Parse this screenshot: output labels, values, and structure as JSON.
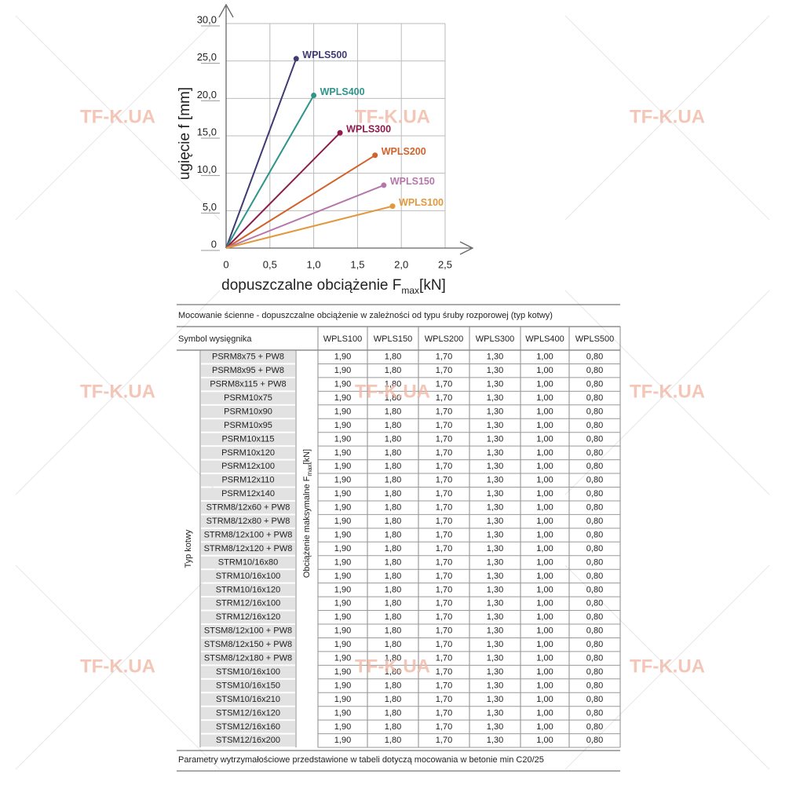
{
  "chart_data": {
    "type": "line",
    "y_label": "ugięcie f [mm]",
    "x_label": {
      "text": "dopuszczalne obciążenie F",
      "sub": "max",
      "unit": "[kN]"
    },
    "xlim": [
      0,
      2.5
    ],
    "xticks": [
      0,
      {
        "value": 0.5,
        "label": "0,5"
      },
      {
        "value": 1,
        "label": "1,0"
      },
      {
        "value": 1.5,
        "label": "1,5"
      },
      {
        "value": 2,
        "label": "2,0"
      },
      {
        "value": 2.5,
        "label": "2,5"
      }
    ],
    "ylim": [
      0,
      30
    ],
    "yticks": [
      0,
      {
        "value": 5,
        "label": "5,0"
      },
      {
        "value": 10,
        "label": "10,0"
      },
      {
        "value": 15,
        "label": "15,0"
      },
      {
        "value": 20,
        "label": "20,0"
      },
      {
        "value": 25,
        "label": "25,0"
      },
      {
        "value": 30,
        "label": "30,0"
      }
    ],
    "grid": true,
    "series": [
      {
        "name": "WPLS500",
        "color": "#3f3b72",
        "x": [
          0,
          0.8
        ],
        "values": [
          0,
          25.3
        ]
      },
      {
        "name": "WPLS400",
        "color": "#2f958a",
        "x": [
          0,
          1.0
        ],
        "values": [
          0,
          20.4
        ]
      },
      {
        "name": "WPLS300",
        "color": "#8c1c4c",
        "x": [
          0,
          1.3
        ],
        "values": [
          0,
          15.4
        ]
      },
      {
        "name": "WPLS200",
        "color": "#d2622c",
        "x": [
          0,
          1.7
        ],
        "values": [
          0,
          12.4
        ]
      },
      {
        "name": "WPLS150",
        "color": "#b577aa",
        "x": [
          0,
          1.8
        ],
        "values": [
          0,
          8.4
        ]
      },
      {
        "name": "WPLS100",
        "color": "#e2983c",
        "x": [
          0,
          1.9
        ],
        "values": [
          0,
          5.6
        ]
      }
    ]
  },
  "watermark": "TF-K.UA",
  "table": {
    "caption": "Mocowanie ścienne - dopuszczalne obciążenie w zależności od typu śruby rozporowej (typ kotwy)",
    "header_label": "Symbol wysięgnika",
    "columns": [
      "WPLS100",
      "WPLS150",
      "WPLS200",
      "WPLS300",
      "WPLS400",
      "WPLS500"
    ],
    "group_label": "Typ kotwy",
    "value_label": {
      "text": "Obciążenie maksymalne F",
      "sub": "max",
      "unit": "[kN]"
    },
    "rows": [
      [
        "PSRM8x75 + PW8",
        "1,90",
        "1,80",
        "1,70",
        "1,30",
        "1,00",
        "0,80"
      ],
      [
        "PSRM8x95 + PW8",
        "1,90",
        "1,80",
        "1,70",
        "1,30",
        "1,00",
        "0,80"
      ],
      [
        "PSRM8x115 + PW8",
        "1,90",
        "1,80",
        "1,70",
        "1,30",
        "1,00",
        "0,80"
      ],
      [
        "PSRM10x75",
        "1,90",
        "1,80",
        "1,70",
        "1,30",
        "1,00",
        "0,80"
      ],
      [
        "PSRM10x90",
        "1,90",
        "1,80",
        "1,70",
        "1,30",
        "1,00",
        "0,80"
      ],
      [
        "PSRM10x95",
        "1,90",
        "1,80",
        "1,70",
        "1,30",
        "1,00",
        "0,80"
      ],
      [
        "PSRM10x115",
        "1,90",
        "1,80",
        "1,70",
        "1,30",
        "1,00",
        "0,80"
      ],
      [
        "PSRM10x120",
        "1,90",
        "1,80",
        "1,70",
        "1,30",
        "1,00",
        "0,80"
      ],
      [
        "PSRM12x100",
        "1,90",
        "1,80",
        "1,70",
        "1,30",
        "1,00",
        "0,80"
      ],
      [
        "PSRM12x110",
        "1,90",
        "1,80",
        "1,70",
        "1,30",
        "1,00",
        "0,80"
      ],
      [
        "PSRM12x140",
        "1,90",
        "1,80",
        "1,70",
        "1,30",
        "1,00",
        "0,80"
      ],
      [
        "STRM8/12x60 + PW8",
        "1,90",
        "1,80",
        "1,70",
        "1,30",
        "1,00",
        "0,80"
      ],
      [
        "STRM8/12x80 + PW8",
        "1,90",
        "1,80",
        "1,70",
        "1,30",
        "1,00",
        "0,80"
      ],
      [
        "STRM8/12x100 + PW8",
        "1,90",
        "1,80",
        "1,70",
        "1,30",
        "1,00",
        "0,80"
      ],
      [
        "STRM8/12x120 + PW8",
        "1,90",
        "1,80",
        "1,70",
        "1,30",
        "1,00",
        "0,80"
      ],
      [
        "STRM10/16x80",
        "1,90",
        "1,80",
        "1,70",
        "1,30",
        "1,00",
        "0,80"
      ],
      [
        "STRM10/16x100",
        "1,90",
        "1,80",
        "1,70",
        "1,30",
        "1,00",
        "0,80"
      ],
      [
        "STRM10/16x120",
        "1,90",
        "1,80",
        "1,70",
        "1,30",
        "1,00",
        "0,80"
      ],
      [
        "STRM12/16x100",
        "1,90",
        "1,80",
        "1,70",
        "1,30",
        "1,00",
        "0,80"
      ],
      [
        "STRM12/16x120",
        "1,90",
        "1,80",
        "1,70",
        "1,30",
        "1,00",
        "0,80"
      ],
      [
        "STSM8/12x100 + PW8",
        "1,90",
        "1,80",
        "1,70",
        "1,30",
        "1,00",
        "0,80"
      ],
      [
        "STSM8/12x150 + PW8",
        "1,90",
        "1,80",
        "1,70",
        "1,30",
        "1,00",
        "0,80"
      ],
      [
        "STSM8/12x180 + PW8",
        "1,90",
        "1,80",
        "1,70",
        "1,30",
        "1,00",
        "0,80"
      ],
      [
        "STSM10/16x100",
        "1,90",
        "1,80",
        "1,70",
        "1,30",
        "1,00",
        "0,80"
      ],
      [
        "STSM10/16x150",
        "1,90",
        "1,80",
        "1,70",
        "1,30",
        "1,00",
        "0,80"
      ],
      [
        "STSM10/16x210",
        "1,90",
        "1,80",
        "1,70",
        "1,30",
        "1,00",
        "0,80"
      ],
      [
        "STSM12/16x120",
        "1,90",
        "1,80",
        "1,70",
        "1,30",
        "1,00",
        "0,80"
      ],
      [
        "STSM12/16x160",
        "1,90",
        "1,80",
        "1,70",
        "1,30",
        "1,00",
        "0,80"
      ],
      [
        "STSM12/16x200",
        "1,90",
        "1,80",
        "1,70",
        "1,30",
        "1,00",
        "0,80"
      ]
    ],
    "footer": "Parametry wytrzymałościowe przedstawione w tabeli dotyczą mocowania w betonie min C20/25"
  }
}
